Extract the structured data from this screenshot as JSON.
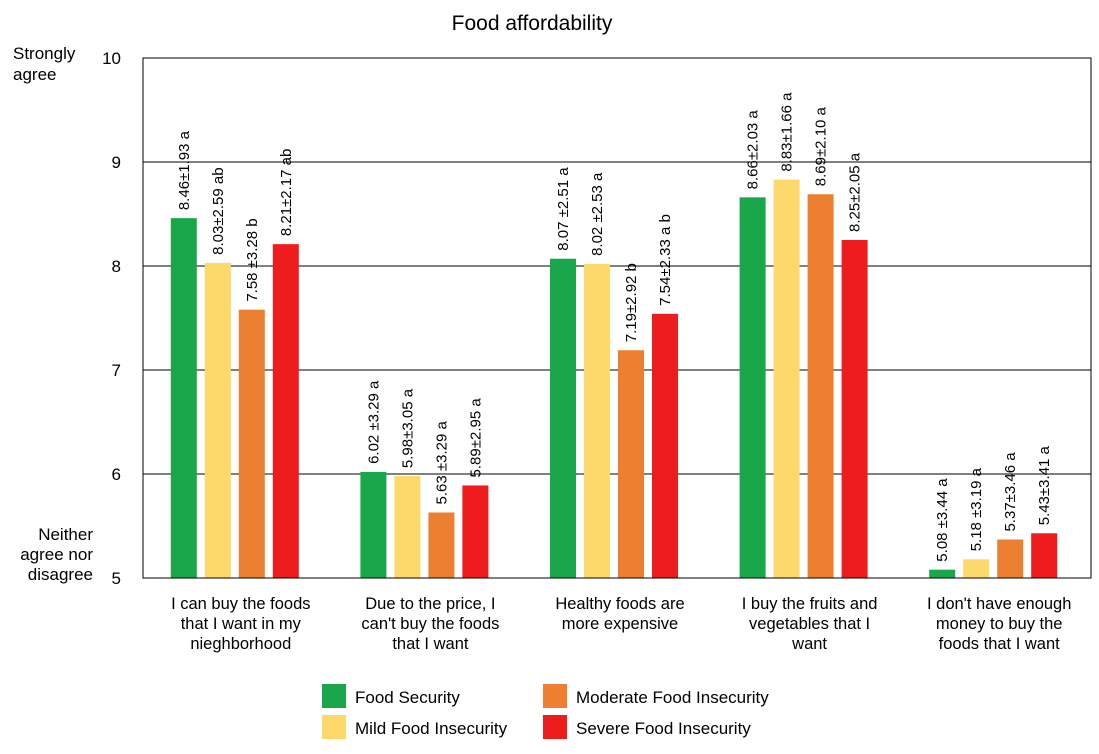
{
  "chart_data": {
    "type": "bar",
    "title": "Food affordability",
    "y_top_label": [
      "Strongly",
      "agree"
    ],
    "y_bottom_label": [
      "Neither",
      "agree nor",
      "disagree"
    ],
    "ylim": [
      5,
      10
    ],
    "yticks": [
      "5",
      "6",
      "7",
      "8",
      "9",
      "10"
    ],
    "grid": true,
    "legend_position": "bottom",
    "categories": [
      [
        "I can buy the foods",
        "that I want in my",
        "nieghborhood"
      ],
      [
        "Due to the price, I",
        "can't buy the foods",
        "that I want"
      ],
      [
        "Healthy foods are",
        "more expensive"
      ],
      [
        "I buy the fruits and",
        "vegetables that I",
        "want"
      ],
      [
        "I don't have enough",
        "money to buy the",
        "foods that I want"
      ]
    ],
    "series": [
      {
        "name": "Food Security",
        "color": "#1aa64a",
        "values": [
          8.46,
          6.02,
          8.07,
          8.66,
          5.08
        ],
        "labels": [
          "8.46±1.93 a",
          "6.02 ±3.29 a",
          "8.07 ±2.51 a",
          "8.66±2.03 a",
          "5.08 ±3.44 a"
        ]
      },
      {
        "name": "Mild Food Insecurity",
        "color": "#fcd96a",
        "values": [
          8.03,
          5.98,
          8.02,
          8.83,
          5.18
        ],
        "labels": [
          "8.03±2.59 ab",
          "5.98±3.05 a",
          "8.02 ±2.53 a",
          "8.83±1.66 a",
          "5.18 ±3.19 a"
        ]
      },
      {
        "name": "Moderate Food Insecurity",
        "color": "#ec8030",
        "values": [
          7.58,
          5.63,
          7.19,
          8.69,
          5.37
        ],
        "labels": [
          "7.58 ±3.28 b",
          "5.63 ±3.29 a",
          "7.19±2.92 b",
          "8.69±2.10 a",
          "5.37±3.46 a"
        ]
      },
      {
        "name": "Severe Food Insecurity",
        "color": "#ee1c1c",
        "values": [
          8.21,
          5.89,
          7.54,
          8.25,
          5.43
        ],
        "labels": [
          "8.21±2.17 ab",
          "5.89±2.95 a",
          "7.54±2.33 a b",
          "8.25±2.05 a",
          "5.43±3.41 a"
        ]
      }
    ]
  }
}
